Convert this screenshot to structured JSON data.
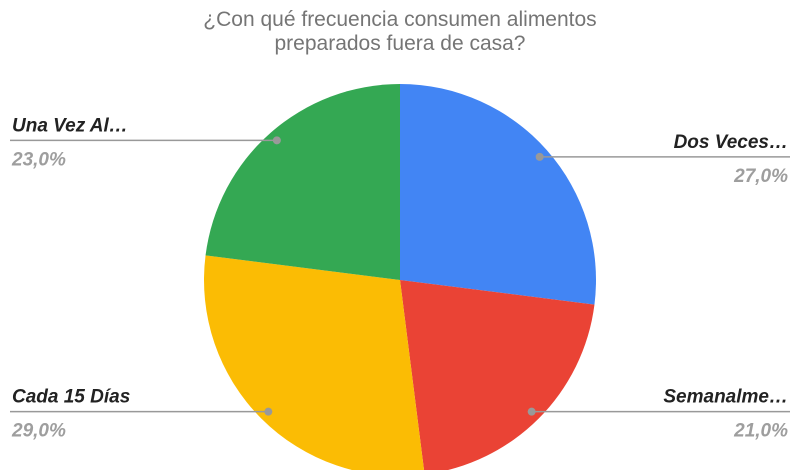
{
  "chart_data": {
    "type": "pie",
    "title": "¿Con qué frecuencia consumen alimentos preparados fuera de casa?",
    "categories": [
      "Dos Veces…",
      "Semanalme…",
      "Cada 15 Días",
      "Una Vez Al…"
    ],
    "values": [
      27,
      21,
      29,
      23
    ],
    "value_labels": [
      "27,0%",
      "21,0%",
      "29,0%",
      "23,0%"
    ],
    "colors": [
      "#4285f4",
      "#ea4335",
      "#fbbc04",
      "#34a853"
    ]
  }
}
